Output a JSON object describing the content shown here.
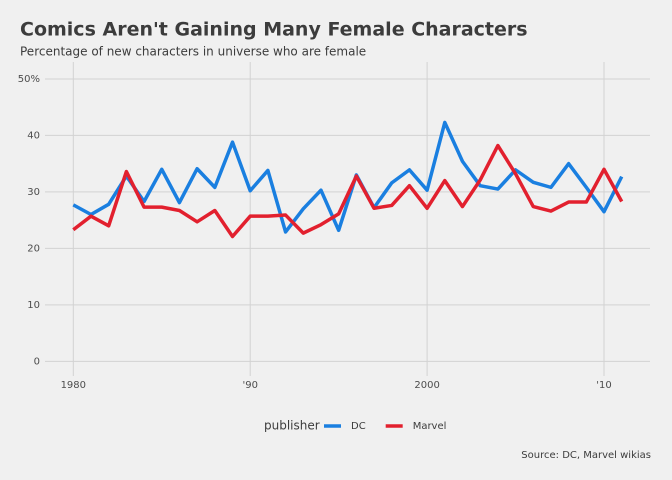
{
  "chart_data": {
    "type": "line",
    "title": "Comics Aren't Gaining Many Female Characters",
    "subtitle": "Percentage of new characters in universe who are female",
    "caption": "Source: DC, Marvel wikias",
    "legend_title": "publisher",
    "legend": "bottom",
    "grid": true,
    "x": [
      1980,
      1981,
      1982,
      1983,
      1984,
      1985,
      1986,
      1987,
      1988,
      1989,
      1990,
      1991,
      1992,
      1993,
      1994,
      1995,
      1996,
      1997,
      1998,
      1999,
      2000,
      2001,
      2002,
      2003,
      2004,
      2005,
      2006,
      2007,
      2008,
      2009,
      2010,
      2011
    ],
    "series": [
      {
        "name": "DC",
        "color": "#1a7fe0",
        "values": [
          27.7,
          26,
          27.8,
          32.8,
          28.3,
          34,
          28.1,
          34.1,
          30.8,
          38.8,
          30.2,
          33.8,
          22.9,
          27,
          30.3,
          23.2,
          33,
          27.2,
          31.6,
          33.9,
          30.3,
          42.3,
          35.4,
          31.1,
          30.5,
          33.9,
          31.7,
          30.8,
          35,
          30.8,
          26.5,
          32.7
        ]
      },
      {
        "name": "Marvel",
        "color": "#e2202e",
        "values": [
          23.3,
          25.7,
          24,
          33.6,
          27.3,
          27.3,
          26.7,
          24.7,
          26.7,
          22.1,
          25.7,
          25.7,
          25.9,
          22.7,
          24.2,
          26.1,
          32.8,
          27.1,
          27.6,
          31.1,
          27.1,
          32,
          27.4,
          32.1,
          38.2,
          33.2,
          27.4,
          26.6,
          28.2,
          28.2,
          34,
          28.3
        ]
      }
    ],
    "xlim": [
      1978.4,
      2012.6
    ],
    "xticks": [
      1980,
      {
        "value": 1990,
        "label": "'90"
      },
      2000,
      {
        "value": 2010,
        "label": "'10"
      }
    ],
    "ylim": [
      -2.6,
      53
    ],
    "yticks": [
      0,
      10,
      20,
      30,
      40,
      {
        "value": 50,
        "label": "50%"
      }
    ]
  }
}
